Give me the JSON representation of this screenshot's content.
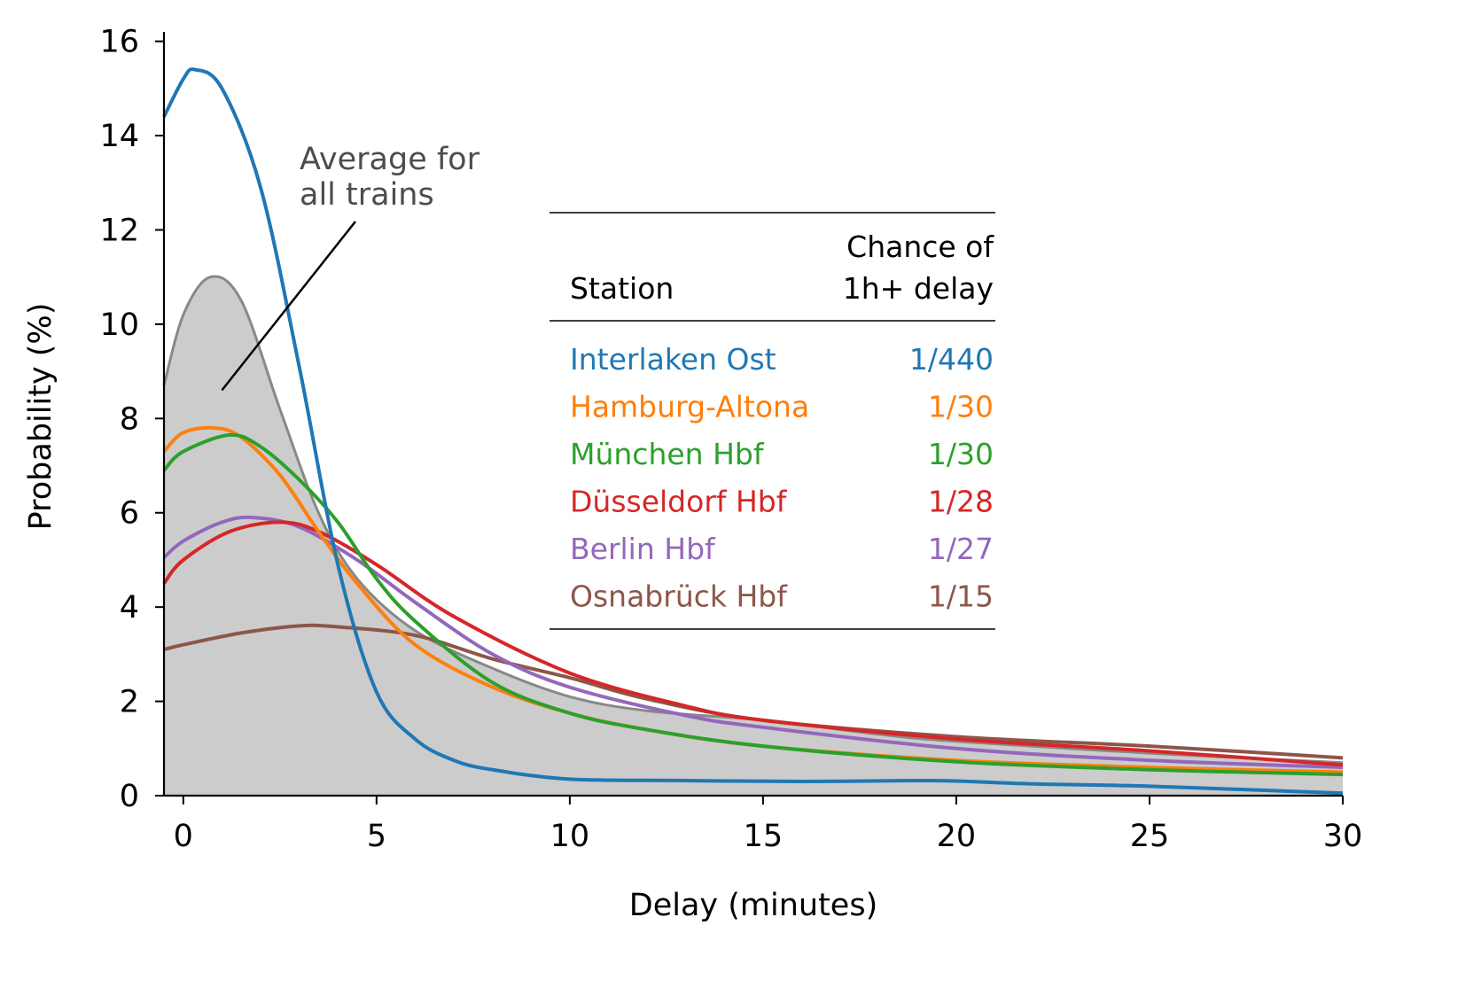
{
  "chart_data": {
    "type": "line",
    "xlabel": "Delay (minutes)",
    "ylabel": "Probability (%)",
    "xlim": [
      -0.5,
      30
    ],
    "ylim": [
      0,
      16.2
    ],
    "x_ticks": [
      0,
      5,
      10,
      15,
      20,
      25,
      30
    ],
    "y_ticks": [
      0,
      2,
      4,
      6,
      8,
      10,
      12,
      14,
      16
    ],
    "grid": false,
    "annotation": {
      "lines": [
        "Average for",
        "all trains"
      ],
      "points_to": {
        "x": 1.0,
        "y": 8.6
      }
    },
    "average": {
      "name": "Average for all trains",
      "color": "#888888",
      "fill": "#cccccc",
      "points": [
        [
          -0.5,
          8.7
        ],
        [
          0,
          10.2
        ],
        [
          0.7,
          11.0
        ],
        [
          1.5,
          10.5
        ],
        [
          2.5,
          8.2
        ],
        [
          3.5,
          6.0
        ],
        [
          4.5,
          4.6
        ],
        [
          6,
          3.5
        ],
        [
          8,
          2.7
        ],
        [
          10,
          2.1
        ],
        [
          12,
          1.8
        ],
        [
          15,
          1.6
        ],
        [
          18,
          1.3
        ],
        [
          20,
          1.15
        ],
        [
          25,
          0.9
        ],
        [
          30,
          0.7
        ]
      ]
    },
    "table": {
      "header_col1": "Station",
      "header_col2_line1": "Chance of",
      "header_col2_line2": "1h+ delay"
    },
    "series": [
      {
        "name": "Interlaken Ost",
        "chance": "1/440",
        "color": "#1f77b4",
        "points": [
          [
            -0.5,
            14.4
          ],
          [
            0,
            15.2
          ],
          [
            0.3,
            15.4
          ],
          [
            1,
            15.0
          ],
          [
            2,
            12.9
          ],
          [
            3,
            9.1
          ],
          [
            4,
            4.9
          ],
          [
            5,
            2.2
          ],
          [
            6,
            1.2
          ],
          [
            7,
            0.75
          ],
          [
            8,
            0.55
          ],
          [
            10,
            0.35
          ],
          [
            13,
            0.32
          ],
          [
            16,
            0.3
          ],
          [
            19,
            0.32
          ],
          [
            20,
            0.31
          ],
          [
            22,
            0.25
          ],
          [
            25,
            0.2
          ],
          [
            30,
            0.05
          ]
        ]
      },
      {
        "name": "Hamburg-Altona",
        "chance": "1/30",
        "color": "#ff7f0e",
        "points": [
          [
            -0.5,
            7.3
          ],
          [
            0,
            7.7
          ],
          [
            0.8,
            7.8
          ],
          [
            1.5,
            7.6
          ],
          [
            2.5,
            6.8
          ],
          [
            3.5,
            5.6
          ],
          [
            4.5,
            4.5
          ],
          [
            6,
            3.2
          ],
          [
            8,
            2.3
          ],
          [
            10,
            1.75
          ],
          [
            12,
            1.4
          ],
          [
            15,
            1.05
          ],
          [
            20,
            0.75
          ],
          [
            25,
            0.6
          ],
          [
            30,
            0.5
          ]
        ]
      },
      {
        "name": "München Hbf",
        "chance": "1/30",
        "color": "#2ca02c",
        "points": [
          [
            -0.5,
            6.9
          ],
          [
            0,
            7.3
          ],
          [
            1.2,
            7.65
          ],
          [
            2,
            7.4
          ],
          [
            3,
            6.7
          ],
          [
            4,
            5.8
          ],
          [
            5,
            4.6
          ],
          [
            6,
            3.7
          ],
          [
            8,
            2.4
          ],
          [
            10,
            1.75
          ],
          [
            12,
            1.4
          ],
          [
            15,
            1.05
          ],
          [
            20,
            0.72
          ],
          [
            25,
            0.55
          ],
          [
            30,
            0.45
          ]
        ]
      },
      {
        "name": "Düsseldorf Hbf",
        "chance": "1/28",
        "color": "#d62728",
        "points": [
          [
            -0.5,
            4.5
          ],
          [
            0,
            5.0
          ],
          [
            1.2,
            5.6
          ],
          [
            2.5,
            5.8
          ],
          [
            3.5,
            5.6
          ],
          [
            5,
            4.9
          ],
          [
            7,
            3.8
          ],
          [
            10,
            2.6
          ],
          [
            13,
            1.9
          ],
          [
            15,
            1.6
          ],
          [
            20,
            1.2
          ],
          [
            25,
            0.95
          ],
          [
            30,
            0.65
          ]
        ]
      },
      {
        "name": "Berlin Hbf",
        "chance": "1/27",
        "color": "#9467bd",
        "points": [
          [
            -0.5,
            5.05
          ],
          [
            0,
            5.4
          ],
          [
            1,
            5.8
          ],
          [
            1.8,
            5.9
          ],
          [
            3,
            5.7
          ],
          [
            4.5,
            5.0
          ],
          [
            6,
            4.1
          ],
          [
            8,
            3.0
          ],
          [
            10,
            2.3
          ],
          [
            13,
            1.7
          ],
          [
            15,
            1.45
          ],
          [
            20,
            1.0
          ],
          [
            25,
            0.75
          ],
          [
            30,
            0.6
          ]
        ]
      },
      {
        "name": "Osnabrück Hbf",
        "chance": "1/15",
        "color": "#8c564b",
        "points": [
          [
            -0.5,
            3.1
          ],
          [
            0,
            3.2
          ],
          [
            1.5,
            3.45
          ],
          [
            3,
            3.6
          ],
          [
            4,
            3.58
          ],
          [
            6,
            3.4
          ],
          [
            8,
            2.9
          ],
          [
            10,
            2.5
          ],
          [
            12,
            2.05
          ],
          [
            15,
            1.6
          ],
          [
            20,
            1.25
          ],
          [
            25,
            1.05
          ],
          [
            30,
            0.8
          ]
        ]
      }
    ]
  }
}
